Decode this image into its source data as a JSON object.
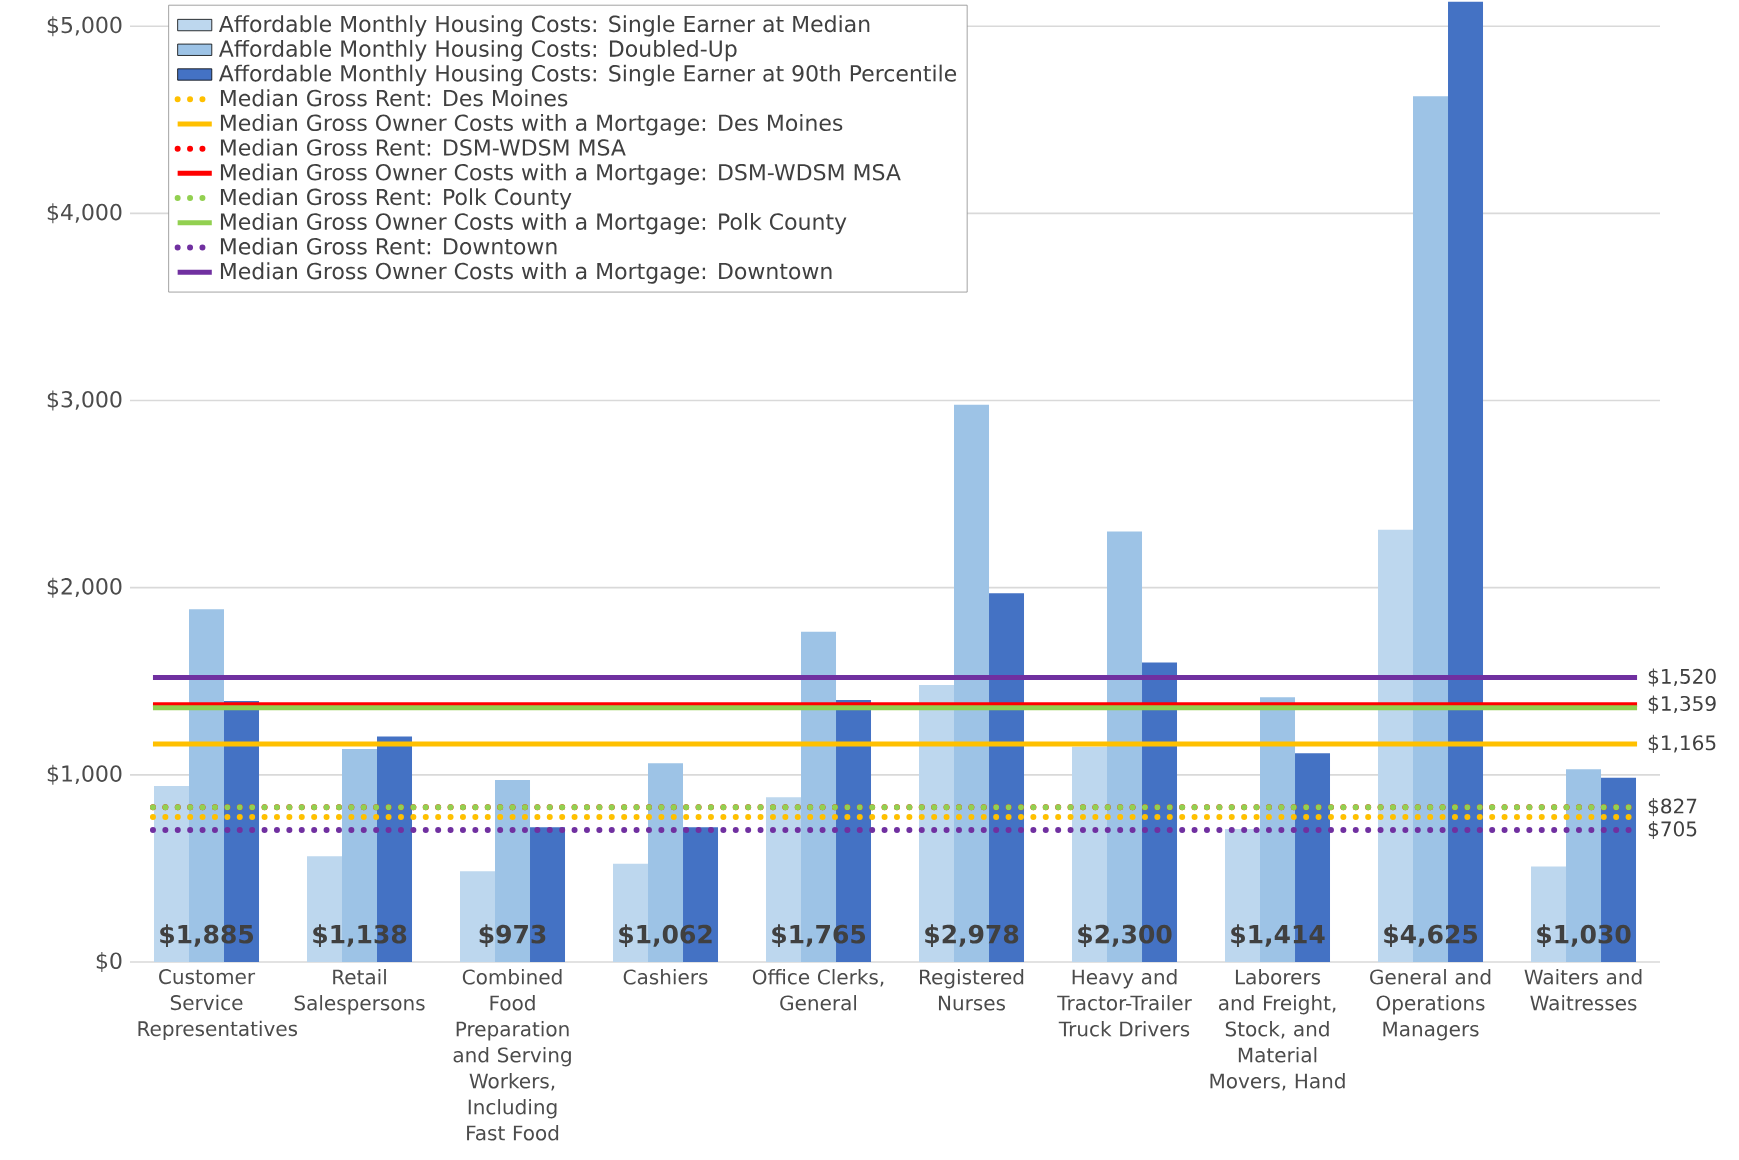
{
  "chart_data": {
    "type": "bar",
    "categories": [
      "Customer Service Representatives",
      "Retail Salespersons",
      "Combined Food Preparation and Serving Workers, Including Fast Food",
      "Cashiers",
      "Office Clerks, General",
      "Registered Nurses",
      "Heavy and Tractor-Trailer Truck Drivers",
      "Laborers and Freight, Stock, and Material Movers, Hand",
      "General and Operations Managers",
      "Waiters and Waitresses"
    ],
    "series": [
      {
        "name": "Affordable Monthly Housing Costs: Single Earner at Median",
        "color": "#bdd7ee",
        "values": [
          940,
          565,
          485,
          525,
          880,
          1480,
          1150,
          710,
          2310,
          510
        ]
      },
      {
        "name": "Affordable Monthly Housing Costs: Doubled-Up",
        "color": "#9dc3e6",
        "values": [
          1885,
          1138,
          973,
          1062,
          1765,
          2978,
          2300,
          1414,
          4625,
          1030
        ],
        "value_labels": [
          "$1,885",
          "$1,138",
          "$973",
          "$1,062",
          "$1,765",
          "$2,978",
          "$2,300",
          "$1,414",
          "$4,625",
          "$1,030"
        ]
      },
      {
        "name": "Affordable Monthly Housing Costs: Single Earner at 90th Percentile",
        "color": "#4472c4",
        "values": [
          1395,
          1205,
          720,
          720,
          1400,
          1970,
          1600,
          1115,
          5130,
          985
        ]
      }
    ],
    "ref_lines": [
      {
        "axis": "y",
        "value": 774,
        "label": "Median Gross Rent: Des Moines",
        "color": "#ffc000",
        "line_style": "dotted"
      },
      {
        "axis": "y",
        "value": 1165,
        "label": "Median Gross Owner Costs with a Mortgage: Des Moines",
        "color": "#ffc000",
        "line_style": "solid"
      },
      {
        "axis": "y",
        "value": 827,
        "label": "Median Gross Rent: DSM-WDSM MSA",
        "color": "#ff0000",
        "line_style": "dotted"
      },
      {
        "axis": "y",
        "value": 1375,
        "label": "Median Gross Owner Costs with a Mortgage: DSM-WDSM MSA",
        "color": "#ff0000",
        "line_style": "solid"
      },
      {
        "axis": "y",
        "value": 827,
        "label": "Median Gross Rent: Polk County",
        "color": "#92d050",
        "line_style": "dotted"
      },
      {
        "axis": "y",
        "value": 1359,
        "label": "Median Gross Owner Costs with a Mortgage: Polk County",
        "color": "#92d050",
        "line_style": "solid"
      },
      {
        "axis": "y",
        "value": 705,
        "label": "Median Gross Rent: Downtown",
        "color": "#7030a0",
        "line_style": "dotted"
      },
      {
        "axis": "y",
        "value": 1520,
        "label": "Median Gross Owner Costs with a Mortgage: Downtown",
        "color": "#7030a0",
        "line_style": "solid"
      }
    ],
    "annotations": [
      "$1,520",
      "$1,359",
      "$1,165",
      "$827",
      "$705"
    ],
    "ylim": [
      0,
      5140
    ],
    "yticks": [
      {
        "value": 0,
        "label": "$0"
      },
      {
        "value": 1000,
        "label": "$1,000"
      },
      {
        "value": 2000,
        "label": "$2,000"
      },
      {
        "value": 3000,
        "label": "$3,000"
      },
      {
        "value": 4000,
        "label": "$4,000"
      },
      {
        "value": 5000,
        "label": "$5,000"
      }
    ],
    "grid": "y",
    "legend": "top left"
  }
}
